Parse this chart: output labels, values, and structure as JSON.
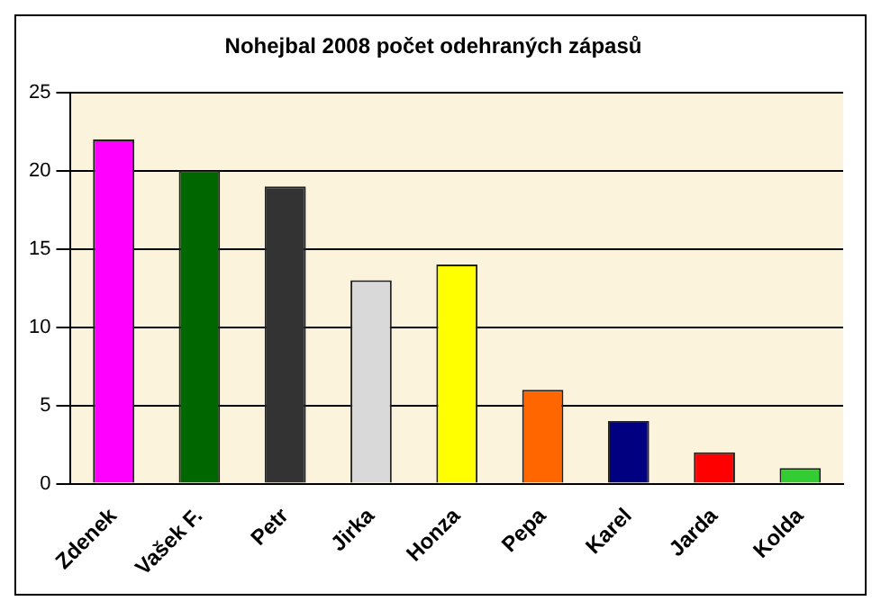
{
  "chart_data": {
    "type": "bar",
    "title": "Nohejbal 2008 počet odehraných zápasů",
    "categories": [
      "Zdenek",
      "Vašek F.",
      "Petr",
      "Jirka",
      "Honza",
      "Pepa",
      "Karel",
      "Jarda",
      "Kolda"
    ],
    "values": [
      22,
      20,
      19,
      13,
      14,
      6,
      4,
      2,
      1
    ],
    "colors": [
      "#ff00ff",
      "#006600",
      "#333333",
      "#d9d9d9",
      "#ffff00",
      "#ff6600",
      "#000080",
      "#ff0000",
      "#33cc33"
    ],
    "ylim": [
      0,
      25
    ],
    "yticks": [
      0,
      5,
      10,
      15,
      20,
      25
    ],
    "grid": "y",
    "legend": false
  }
}
